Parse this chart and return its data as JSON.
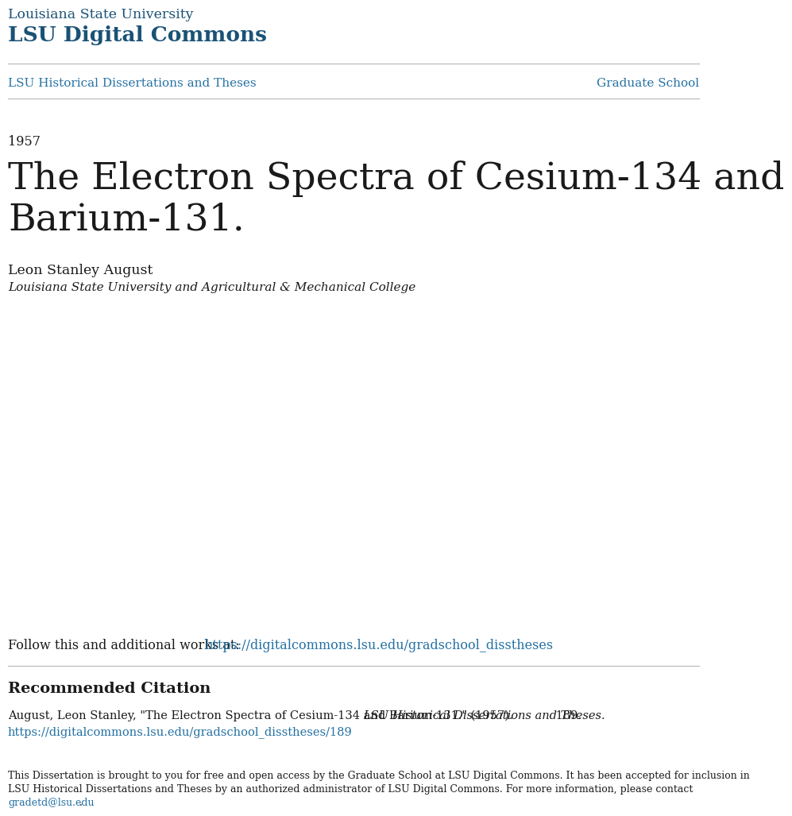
{
  "bg_color": "#ffffff",
  "lsu_blue": "#1a5276",
  "link_blue": "#2471a3",
  "text_dark": "#1a1a1a",
  "line_color": "#bbbbbb",
  "header_line1": "Louisiana State University",
  "header_line2": "LSU Digital Commons",
  "nav_left": "LSU Historical Dissertations and Theses",
  "nav_right": "Graduate School",
  "year": "1957",
  "main_title_line1": "The Electron Spectra of Cesium-134 and",
  "main_title_line2": "Barium-131.",
  "author": "Leon Stanley August",
  "institution": "Louisiana State University and Agricultural & Mechanical College",
  "follow_text": "Follow this and additional works at: ",
  "follow_link": "https://digitalcommons.lsu.edu/gradschool_disstheses",
  "rec_citation_header": "Recommended Citation",
  "citation_normal": "August, Leon Stanley, \"The Electron Spectra of Cesium-134 and Barium-131.\" (1957). ",
  "citation_italic": "LSU Historical Dissertations and Theses.",
  "citation_number": " 189.",
  "citation_link": "https://digitalcommons.lsu.edu/gradschool_disstheses/189",
  "disclaimer_line1": "This Dissertation is brought to you for free and open access by the Graduate School at LSU Digital Commons. It has been accepted for inclusion in",
  "disclaimer_line2": "LSU Historical Dissertations and Theses by an authorized administrator of LSU Digital Commons. For more information, please contact",
  "disclaimer_email": "gradetd@lsu.edu",
  "disclaimer_end": "."
}
